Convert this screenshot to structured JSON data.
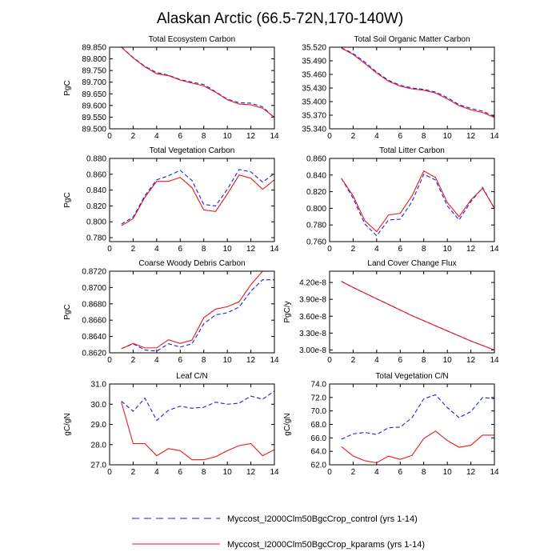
{
  "title": "Alaskan Arctic (66.5-72N,170-140W)",
  "colors": {
    "control": "#1f1fe6",
    "kparams": "#e61a1a",
    "axis": "#000000"
  },
  "legend": [
    {
      "label": "Myccost_I2000Clm50BgcCrop_control (yrs 1-14)",
      "style": "dashed",
      "color": "#1f1fe6"
    },
    {
      "label": "Myccost_I2000Clm50BgcCrop_kparams (yrs 1-14)",
      "style": "solid",
      "color": "#e61a1a"
    }
  ],
  "chart_data": [
    {
      "type": "line",
      "title": "Total Ecosystem Carbon",
      "ylabel": "PgC",
      "xlabel": "",
      "xlim": [
        0,
        14
      ],
      "xticks": [
        0,
        2,
        4,
        6,
        8,
        10,
        12,
        14
      ],
      "ylim": [
        89.5,
        89.85
      ],
      "yticks": [
        "89.500",
        "89.550",
        "89.600",
        "89.650",
        "89.700",
        "89.750",
        "89.800",
        "89.850"
      ],
      "x": [
        1,
        2,
        3,
        4,
        5,
        6,
        7,
        8,
        9,
        10,
        11,
        12,
        13,
        14
      ],
      "series": [
        {
          "name": "control",
          "values": [
            89.851,
            89.806,
            89.768,
            89.741,
            89.73,
            89.711,
            89.7,
            89.69,
            89.659,
            89.627,
            89.612,
            89.61,
            89.594,
            89.547
          ]
        },
        {
          "name": "kparams",
          "values": [
            89.85,
            89.804,
            89.766,
            89.736,
            89.728,
            89.709,
            89.696,
            89.684,
            89.657,
            89.625,
            89.606,
            89.603,
            89.588,
            89.55
          ]
        }
      ]
    },
    {
      "type": "line",
      "title": "Total Soil Organic Matter Carbon",
      "ylabel": "",
      "xlabel": "",
      "xlim": [
        0,
        14
      ],
      "xticks": [
        0,
        2,
        4,
        6,
        8,
        10,
        12,
        14
      ],
      "ylim": [
        35.34,
        35.52
      ],
      "yticks": [
        "35.340",
        "35.370",
        "35.400",
        "35.430",
        "35.460",
        "35.490",
        "35.520"
      ],
      "x": [
        1,
        2,
        3,
        4,
        5,
        6,
        7,
        8,
        9,
        10,
        11,
        12,
        13,
        14
      ],
      "series": [
        {
          "name": "control",
          "values": [
            35.519,
            35.506,
            35.487,
            35.465,
            35.447,
            35.436,
            35.43,
            35.427,
            35.421,
            35.409,
            35.393,
            35.385,
            35.379,
            35.367
          ]
        },
        {
          "name": "kparams",
          "values": [
            35.518,
            35.504,
            35.484,
            35.463,
            35.445,
            35.434,
            35.428,
            35.425,
            35.419,
            35.406,
            35.391,
            35.382,
            35.376,
            35.365
          ]
        }
      ]
    },
    {
      "type": "line",
      "title": "Total Vegetation Carbon",
      "ylabel": "PgC",
      "xlabel": "",
      "xlim": [
        0,
        14
      ],
      "xticks": [
        0,
        2,
        4,
        6,
        8,
        10,
        12,
        14
      ],
      "ylim": [
        0.775,
        0.88
      ],
      "yticks": [
        "0.780",
        "0.800",
        "0.820",
        "0.840",
        "0.860",
        "0.880"
      ],
      "x": [
        1,
        2,
        3,
        4,
        5,
        6,
        7,
        8,
        9,
        10,
        11,
        12,
        13,
        14
      ],
      "series": [
        {
          "name": "control",
          "values": [
            0.797,
            0.806,
            0.833,
            0.853,
            0.858,
            0.865,
            0.852,
            0.822,
            0.82,
            0.841,
            0.866,
            0.863,
            0.85,
            0.861
          ]
        },
        {
          "name": "kparams",
          "values": [
            0.795,
            0.804,
            0.831,
            0.851,
            0.851,
            0.856,
            0.843,
            0.815,
            0.813,
            0.835,
            0.859,
            0.855,
            0.841,
            0.853
          ]
        }
      ]
    },
    {
      "type": "line",
      "title": "Total Litter Carbon",
      "ylabel": "",
      "xlabel": "",
      "xlim": [
        0,
        14
      ],
      "xticks": [
        0,
        2,
        4,
        6,
        8,
        10,
        12,
        14
      ],
      "ylim": [
        0.76,
        0.86
      ],
      "yticks": [
        "0.760",
        "0.780",
        "0.800",
        "0.820",
        "0.840",
        "0.860"
      ],
      "x": [
        1,
        2,
        3,
        4,
        5,
        6,
        7,
        8,
        9,
        10,
        11,
        12,
        13,
        14
      ],
      "series": [
        {
          "name": "control",
          "values": [
            0.836,
            0.812,
            0.781,
            0.767,
            0.786,
            0.787,
            0.808,
            0.841,
            0.834,
            0.803,
            0.786,
            0.808,
            0.825,
            0.8
          ]
        },
        {
          "name": "kparams",
          "values": [
            0.836,
            0.815,
            0.785,
            0.772,
            0.792,
            0.794,
            0.815,
            0.845,
            0.837,
            0.807,
            0.79,
            0.81,
            0.824,
            0.8
          ]
        }
      ]
    },
    {
      "type": "line",
      "title": "Coarse Woody Debris Carbon",
      "ylabel": "PgC",
      "xlabel": "",
      "xlim": [
        0,
        14
      ],
      "xticks": [
        0,
        2,
        4,
        6,
        8,
        10,
        12,
        14
      ],
      "ylim": [
        0.862,
        0.872
      ],
      "yticks": [
        "0.8620",
        "0.8640",
        "0.8660",
        "0.8680",
        "0.8700",
        "0.8720"
      ],
      "x": [
        1,
        2,
        3,
        4,
        5,
        6,
        7,
        8,
        9,
        10,
        11,
        12,
        13,
        14
      ],
      "series": [
        {
          "name": "control",
          "values": [
            0.8625,
            0.8631,
            0.86235,
            0.8622,
            0.8631,
            0.8627,
            0.8631,
            0.86555,
            0.86665,
            0.8669,
            0.8676,
            0.86955,
            0.87095,
            0.87095
          ]
        },
        {
          "name": "kparams",
          "values": [
            0.8625,
            0.86315,
            0.8626,
            0.8626,
            0.8636,
            0.86315,
            0.86355,
            0.8663,
            0.86735,
            0.86765,
            0.86825,
            0.87035,
            0.872,
            0.872
          ]
        }
      ]
    },
    {
      "type": "line",
      "title": "Land Cover Change Flux",
      "ylabel": "PgC/y",
      "xlabel": "",
      "xlim": [
        0,
        14
      ],
      "xticks": [
        0,
        2,
        4,
        6,
        8,
        10,
        12,
        14
      ],
      "ylim": [
        2.95e-08,
        4.4e-08
      ],
      "yticks": [
        "3.00e-8",
        "3.30e-8",
        "3.60e-8",
        "3.90e-8",
        "4.20e-8"
      ],
      "x": [
        1,
        2,
        3,
        4,
        5,
        6,
        7,
        8,
        9,
        10,
        11,
        12,
        13,
        14
      ],
      "series": [
        {
          "name": "control",
          "values": [
            4.22e-08,
            4.11e-08,
            4.01e-08,
            3.91e-08,
            3.81e-08,
            3.71e-08,
            3.61e-08,
            3.52e-08,
            3.43e-08,
            3.34e-08,
            3.25e-08,
            3.16e-08,
            3.08e-08,
            3e-08
          ]
        },
        {
          "name": "kparams",
          "values": [
            4.22e-08,
            4.11e-08,
            4.01e-08,
            3.91e-08,
            3.81e-08,
            3.71e-08,
            3.61e-08,
            3.52e-08,
            3.43e-08,
            3.34e-08,
            3.25e-08,
            3.16e-08,
            3.08e-08,
            3e-08
          ]
        }
      ]
    },
    {
      "type": "line",
      "title": "Leaf C/N",
      "ylabel": "gC/gN",
      "xlabel": "",
      "xlim": [
        0,
        14
      ],
      "xticks": [
        0,
        2,
        4,
        6,
        8,
        10,
        12,
        14
      ],
      "ylim": [
        27.0,
        31.0
      ],
      "yticks": [
        "27.0",
        "28.0",
        "29.0",
        "30.0",
        "31.0"
      ],
      "x": [
        1,
        2,
        3,
        4,
        5,
        6,
        7,
        8,
        9,
        10,
        11,
        12,
        13,
        14
      ],
      "series": [
        {
          "name": "control",
          "values": [
            30.15,
            29.65,
            30.3,
            29.2,
            29.7,
            29.9,
            29.8,
            29.85,
            30.1,
            30.0,
            30.05,
            30.4,
            30.25,
            30.65
          ]
        },
        {
          "name": "kparams",
          "values": [
            30.1,
            28.05,
            28.05,
            27.45,
            27.8,
            27.7,
            27.25,
            27.25,
            27.4,
            27.7,
            27.95,
            28.05,
            27.45,
            27.75
          ]
        }
      ]
    },
    {
      "type": "line",
      "title": "Total Vegetation C/N",
      "ylabel": "gC/gN",
      "xlabel": "",
      "xlim": [
        0,
        14
      ],
      "xticks": [
        0,
        2,
        4,
        6,
        8,
        10,
        12,
        14
      ],
      "ylim": [
        62.0,
        74.0
      ],
      "yticks": [
        "62.0",
        "64.0",
        "66.0",
        "68.0",
        "70.0",
        "72.0",
        "74.0"
      ],
      "x": [
        1,
        2,
        3,
        4,
        5,
        6,
        7,
        8,
        9,
        10,
        11,
        12,
        13,
        14
      ],
      "series": [
        {
          "name": "control",
          "values": [
            65.8,
            66.6,
            66.8,
            66.5,
            67.5,
            67.6,
            69.0,
            71.8,
            72.4,
            70.5,
            69.0,
            69.9,
            72.0,
            71.8
          ]
        },
        {
          "name": "kparams",
          "values": [
            64.7,
            63.3,
            62.6,
            62.3,
            63.3,
            62.8,
            63.4,
            65.9,
            67.0,
            65.6,
            64.6,
            64.9,
            66.4,
            66.4
          ]
        }
      ]
    }
  ]
}
